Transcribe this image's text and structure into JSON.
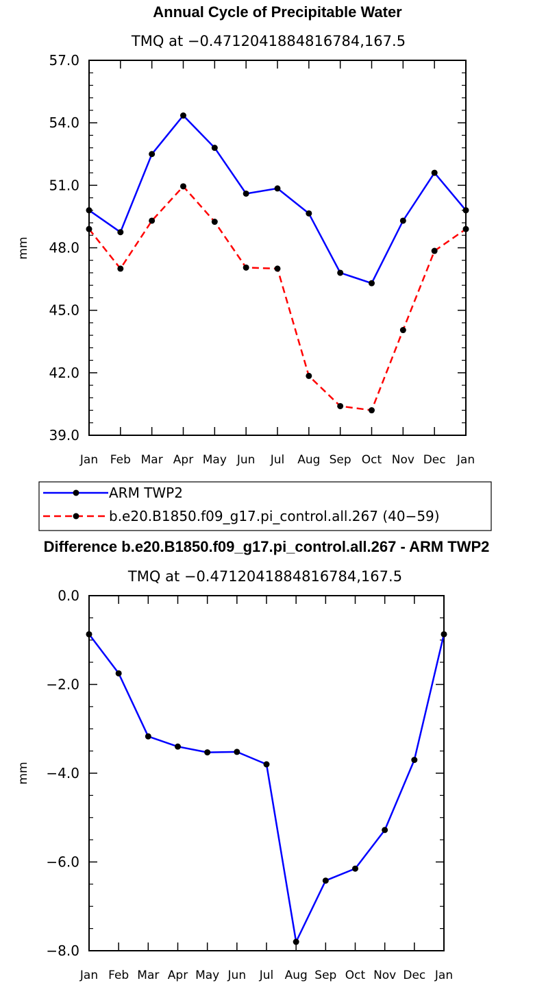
{
  "chart_data": [
    {
      "type": "line",
      "title": "Annual Cycle of Precipitable Water",
      "subtitle": "TMQ at −0.4712041884816784,167.5",
      "ylabel": "mm",
      "ylim": [
        39.0,
        57.0
      ],
      "yticks": [
        "39.0",
        "42.0",
        "45.0",
        "48.0",
        "51.0",
        "54.0",
        "57.0"
      ],
      "categories": [
        "Jan",
        "Feb",
        "Mar",
        "Apr",
        "May",
        "Jun",
        "Jul",
        "Aug",
        "Sep",
        "Oct",
        "Nov",
        "Dec",
        "Jan"
      ],
      "series": [
        {
          "name": "ARM TWP2",
          "color": "#0000ff",
          "dash": "solid",
          "values": [
            49.8,
            48.75,
            52.5,
            54.35,
            52.8,
            50.6,
            50.85,
            49.65,
            46.8,
            46.3,
            49.3,
            51.6,
            49.8
          ]
        },
        {
          "name": "b.e20.B1850.f09_g17.pi_control.all.267 (40−59)",
          "color": "#ff0000",
          "dash": "dashed",
          "values": [
            48.9,
            47.0,
            49.3,
            50.95,
            49.25,
            47.05,
            47.0,
            41.85,
            40.4,
            40.2,
            44.05,
            47.85,
            48.9
          ]
        }
      ],
      "legend_position": "below"
    },
    {
      "type": "line",
      "title": "Difference b.e20.B1850.f09_g17.pi_control.all.267 - ARM TWP2",
      "subtitle": "TMQ at −0.4712041884816784,167.5",
      "ylabel": "mm",
      "ylim": [
        -8.0,
        0.0
      ],
      "yticks": [
        "−8.0",
        "−6.0",
        "−4.0",
        "−2.0",
        "0.0"
      ],
      "categories": [
        "Jan",
        "Feb",
        "Mar",
        "Apr",
        "May",
        "Jun",
        "Jul",
        "Aug",
        "Sep",
        "Oct",
        "Nov",
        "Dec",
        "Jan"
      ],
      "series": [
        {
          "color": "#0000ff",
          "dash": "solid",
          "values": [
            -0.87,
            -1.75,
            -3.17,
            -3.4,
            -3.53,
            -3.52,
            -3.8,
            -7.8,
            -6.42,
            -6.15,
            -5.28,
            -3.7,
            -0.87
          ]
        }
      ]
    }
  ]
}
